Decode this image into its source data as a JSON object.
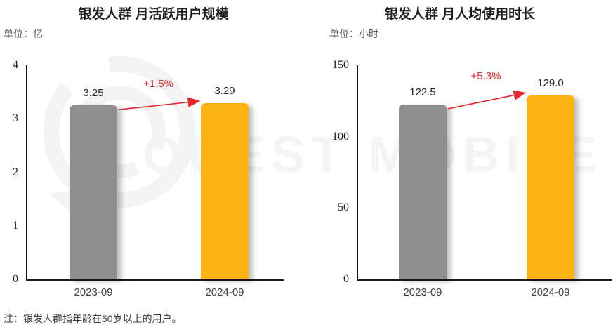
{
  "watermark": {
    "text": "QUEST MOBILE",
    "logo": "questmobile-logo",
    "color": "#f3f3f3"
  },
  "note": "注：银发人群指年龄在50岁以上的用户。",
  "chart_data": [
    {
      "type": "bar",
      "title": "银发人群 月活跃用户规模",
      "unit_label": "单位：亿",
      "ylabel": "亿",
      "xlabel": "",
      "categories": [
        "2023-09",
        "2024-09"
      ],
      "values": [
        3.25,
        3.29
      ],
      "value_labels": [
        "3.25",
        "3.29"
      ],
      "growth_label": "+1.5%",
      "ylim": [
        0,
        4
      ],
      "yticks": [
        "0",
        "1",
        "2",
        "3",
        "4"
      ],
      "grid": false,
      "legend": "none",
      "bar_colors": [
        "#8f8f8f",
        "#fcb415"
      ],
      "growth_color": "#e5282d"
    },
    {
      "type": "bar",
      "title": "银发人群 月人均使用时长",
      "unit_label": "单位：小时",
      "ylabel": "小时",
      "xlabel": "",
      "categories": [
        "2023-09",
        "2024-09"
      ],
      "values": [
        122.5,
        129.0
      ],
      "value_labels": [
        "122.5",
        "129.0"
      ],
      "growth_label": "+5.3%",
      "ylim": [
        0,
        150
      ],
      "yticks": [
        "0",
        "50",
        "100",
        "150"
      ],
      "grid": false,
      "legend": "none",
      "bar_colors": [
        "#8f8f8f",
        "#fcb415"
      ],
      "growth_color": "#e5282d"
    }
  ]
}
